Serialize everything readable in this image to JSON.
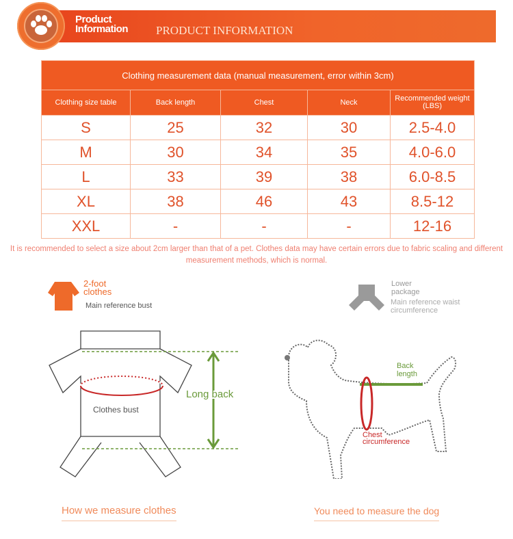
{
  "header": {
    "title": "Product Information",
    "subtitle": "PRODUCT INFORMATION",
    "icon": "paw-icon"
  },
  "table": {
    "title": "Clothing measurement data (manual measurement, error within 3cm)",
    "columns": [
      "Clothing size table",
      "Back length",
      "Chest",
      "Neck",
      "Recommended weight (LBS)"
    ],
    "rows": [
      [
        "S",
        "25",
        "32",
        "30",
        "2.5-4.0"
      ],
      [
        "M",
        "30",
        "34",
        "35",
        "4.0-6.0"
      ],
      [
        "L",
        "33",
        "39",
        "38",
        "6.0-8.5"
      ],
      [
        "XL",
        "38",
        "46",
        "43",
        "8.5-12"
      ],
      [
        "XXL",
        "-",
        "-",
        "-",
        "12-16"
      ]
    ]
  },
  "note": "It is recommended to select a size about 2cm larger than that of a pet. Clothes data may have certain errors due to fabric scaling and different measurement methods, which is normal.",
  "left": {
    "type_label": "2-foot clothes",
    "ref": "Main reference bust",
    "bust_label": "Clothes bust",
    "length_label": "Long back",
    "caption": "How we measure clothes"
  },
  "right": {
    "type_label": "Lower package",
    "ref": "Main reference waist circumference",
    "back_label": "Back length",
    "chest_label": "Chest circumference",
    "caption": "You need to measure the dog"
  },
  "colors": {
    "accent": "#ef5a22",
    "note": "#ef7f70",
    "green": "#6a9a3a",
    "red": "#c8262a"
  }
}
